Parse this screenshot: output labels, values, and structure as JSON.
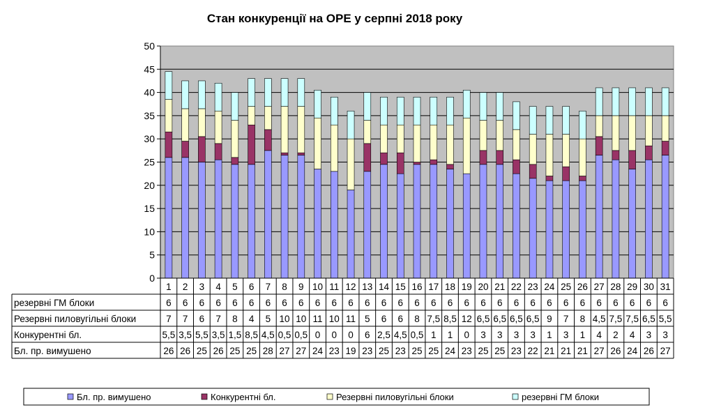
{
  "chart_data": {
    "type": "bar",
    "stacked": true,
    "title": "Стан конкуренції на ОРЕ  у серпні 2018 року",
    "categories": [
      "1",
      "2",
      "3",
      "4",
      "5",
      "6",
      "7",
      "8",
      "9",
      "10",
      "11",
      "12",
      "13",
      "14",
      "15",
      "16",
      "17",
      "18",
      "19",
      "20",
      "21",
      "22",
      "23",
      "24",
      "25",
      "26",
      "27",
      "28",
      "29",
      "30",
      "31"
    ],
    "ylim": [
      0,
      50
    ],
    "yticks": [
      0,
      5,
      10,
      15,
      20,
      25,
      30,
      35,
      40,
      45,
      50
    ],
    "grid": true,
    "legend_position": "bottom",
    "series": [
      {
        "name": "Бл. пр. вимушено",
        "color": "#9999ff",
        "values": [
          26,
          26,
          25,
          25.5,
          24.5,
          24.5,
          27.5,
          26.5,
          26.5,
          23.5,
          23,
          19,
          23,
          24.5,
          22.5,
          24.5,
          24.5,
          23.5,
          22.5,
          24.5,
          24.5,
          22.5,
          21.5,
          21,
          21,
          21,
          26.5,
          25.5,
          23.5,
          25.5,
          26.5
        ],
        "labels": [
          "26",
          "26",
          "25",
          "26",
          "25",
          "25",
          "28",
          "27",
          "27",
          "24",
          "23",
          "19",
          "23",
          "25",
          "23",
          "25",
          "25",
          "24",
          "23",
          "25",
          "25",
          "23",
          "22",
          "21",
          "21",
          "21",
          "27",
          "26",
          "24",
          "26",
          "27"
        ]
      },
      {
        "name": "Конкурентні  бл.",
        "legend_name": "Конкурентні бл.",
        "color": "#993366",
        "values": [
          5.5,
          3.5,
          5.5,
          3.5,
          1.5,
          8.5,
          4.5,
          0.5,
          0.5,
          0,
          0,
          0,
          6,
          2.5,
          4.5,
          0.5,
          1,
          1,
          0,
          3,
          3,
          3,
          3,
          1,
          3,
          1,
          4,
          2,
          4,
          3,
          3
        ],
        "labels": [
          "5,5",
          "3,5",
          "5,5",
          "3,5",
          "1,5",
          "8,5",
          "4,5",
          "0,5",
          "0,5",
          "0",
          "0",
          "0",
          "6",
          "2,5",
          "4,5",
          "0,5",
          "1",
          "1",
          "0",
          "3",
          "3",
          "3",
          "3",
          "1",
          "3",
          "1",
          "4",
          "2",
          "4",
          "3",
          "3"
        ]
      },
      {
        "name": "Резервні пиловугільні  блоки",
        "legend_name": "Резервні пиловугільні  блоки",
        "color": "#ffffcc",
        "values": [
          7,
          7,
          6,
          7,
          8,
          4,
          5,
          10,
          10,
          11,
          10,
          11,
          5,
          6,
          6,
          8,
          7.5,
          8.5,
          12,
          6.5,
          6.5,
          6.5,
          6.5,
          9,
          7,
          8,
          4.5,
          7.5,
          7.5,
          6.5,
          5.5
        ],
        "labels": [
          "7",
          "7",
          "6",
          "7",
          "8",
          "4",
          "5",
          "10",
          "10",
          "11",
          "10",
          "11",
          "5",
          "6",
          "6",
          "8",
          "7,5",
          "8,5",
          "12",
          "6,5",
          "6,5",
          "6,5",
          "6,5",
          "9",
          "7",
          "8",
          "4,5",
          "7,5",
          "7,5",
          "6,5",
          "5,5"
        ]
      },
      {
        "name": "резервні ГМ блоки",
        "color": "#ccffff",
        "values": [
          6,
          6,
          6,
          6,
          6,
          6,
          6,
          6,
          6,
          6,
          6,
          6,
          6,
          6,
          6,
          6,
          6,
          6,
          6,
          6,
          6,
          6,
          6,
          6,
          6,
          6,
          6,
          6,
          6,
          6,
          6
        ],
        "labels": [
          "6",
          "6",
          "6",
          "6",
          "6",
          "6",
          "6",
          "6",
          "6",
          "6",
          "6",
          "6",
          "6",
          "6",
          "6",
          "6",
          "6",
          "6",
          "6",
          "6",
          "6",
          "6",
          "6",
          "6",
          "6",
          "6",
          "6",
          "6",
          "6",
          "6",
          "6"
        ]
      }
    ],
    "table_row_order": [
      3,
      2,
      1,
      0
    ],
    "colors": {
      "plot_background": "#c0c0c0",
      "gridline": "#000000"
    }
  }
}
